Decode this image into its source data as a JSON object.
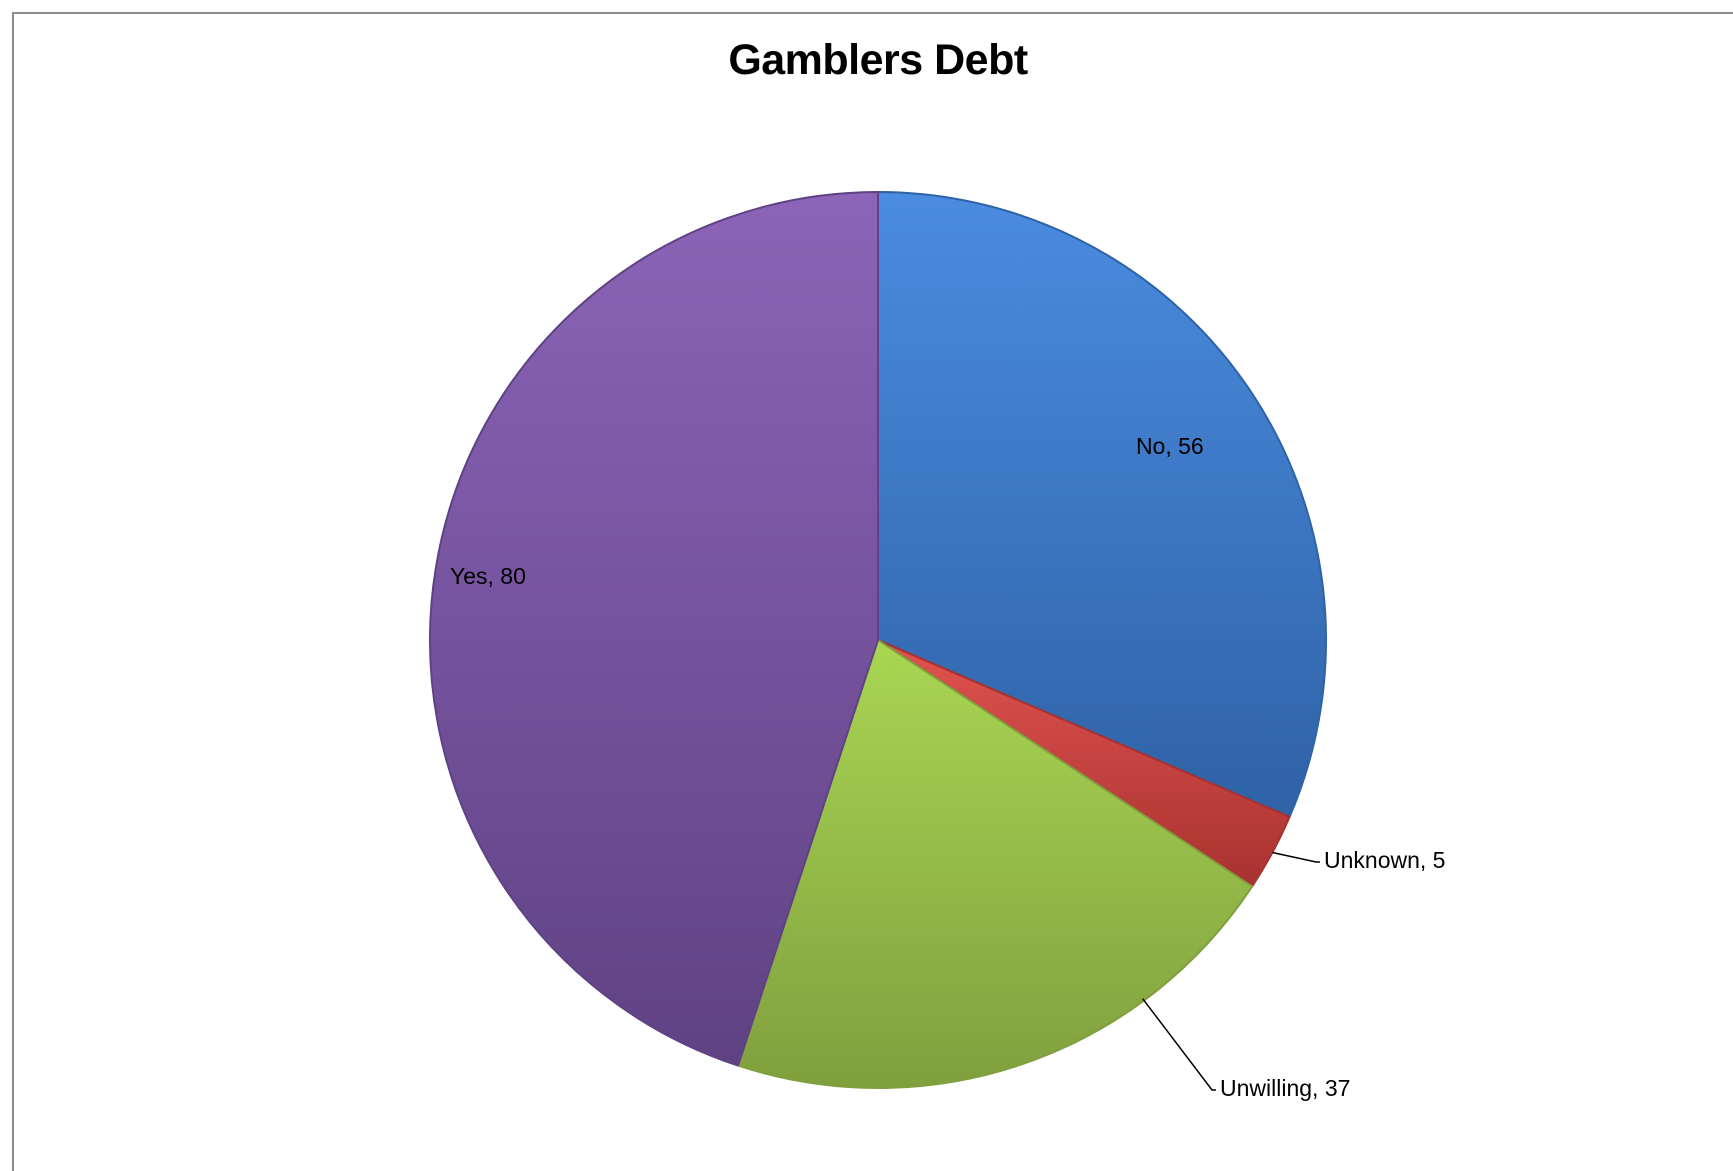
{
  "chart_data": {
    "type": "pie",
    "title": "Gamblers Debt",
    "start_angle_deg": 0,
    "direction": "clockwise",
    "slices": [
      {
        "label": "No",
        "value": 56,
        "display": "No, 56",
        "color_light": "#4a8ce0",
        "color_dark": "#2f62a6"
      },
      {
        "label": "Unknown",
        "value": 5,
        "display": "Unknown, 5",
        "color_light": "#e0534f",
        "color_dark": "#a83230"
      },
      {
        "label": "Unwilling",
        "value": 37,
        "display": "Unwilling, 37",
        "color_light": "#a9d653",
        "color_dark": "#809f3e"
      },
      {
        "label": "Yes",
        "value": 80,
        "display": "Yes, 80",
        "color_light": "#8c64b8",
        "color_dark": "#5f4283"
      }
    ]
  }
}
